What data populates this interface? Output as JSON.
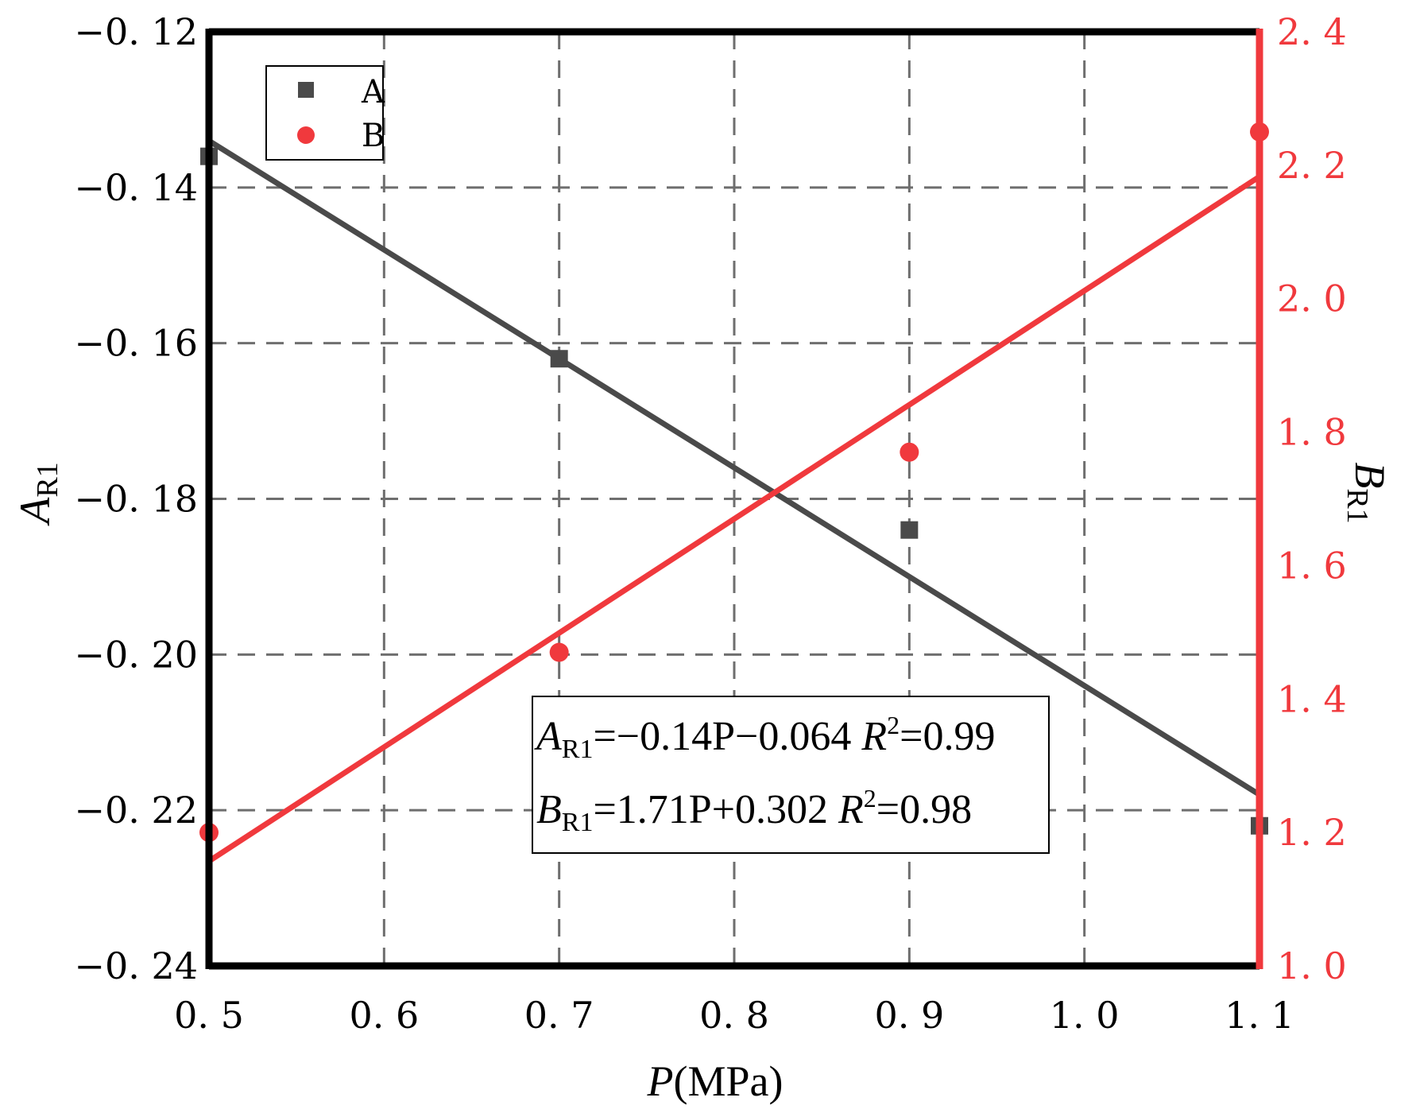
{
  "chart_data": {
    "type": "scatter",
    "title": "",
    "xlabel": {
      "main": "P",
      "unit": "(MPa)"
    },
    "ylabel_left": {
      "main": "A",
      "sub": "R1"
    },
    "ylabel_right": {
      "main": "B",
      "sub": "R1"
    },
    "xlim": [
      0.5,
      1.1
    ],
    "ylim_left": [
      -0.24,
      -0.12
    ],
    "ylim_right": [
      1.0,
      2.4
    ],
    "x_ticks": [
      0.5,
      0.6,
      0.7,
      0.8,
      0.9,
      1.0,
      1.1
    ],
    "x_tick_labels": [
      "0. 5",
      "0. 6",
      "0. 7",
      "0. 8",
      "0. 9",
      "1. 0",
      "1. 1"
    ],
    "y_left_ticks": [
      -0.24,
      -0.22,
      -0.2,
      -0.18,
      -0.16,
      -0.14,
      -0.12
    ],
    "y_left_tick_labels": [
      "−0. 24",
      "−0. 22",
      "−0. 20",
      "−0. 18",
      "−0. 16",
      "−0. 14",
      "−0. 12"
    ],
    "y_right_ticks": [
      1.0,
      1.2,
      1.4,
      1.6,
      1.8,
      2.0,
      2.2,
      2.4
    ],
    "y_right_tick_labels": [
      "1. 0",
      "1. 2",
      "1. 4",
      "1. 6",
      "1. 8",
      "2. 0",
      "2. 2",
      "2. 4"
    ],
    "grid": true,
    "legend_position": "top-left",
    "series": [
      {
        "name": "A",
        "axis": "left",
        "marker": "square",
        "color": "#4a4a4a",
        "x": [
          0.5,
          0.7,
          0.9,
          1.1
        ],
        "y": [
          -0.136,
          -0.162,
          -0.184,
          -0.222
        ],
        "fit": {
          "slope": -0.14,
          "intercept": -0.064
        }
      },
      {
        "name": "B",
        "axis": "right",
        "marker": "circle",
        "color": "#f0393d",
        "x": [
          0.5,
          0.7,
          0.9,
          1.1
        ],
        "y": [
          1.2,
          1.47,
          1.77,
          2.25
        ],
        "fit": {
          "slope": 1.71,
          "intercept": 0.302
        }
      }
    ],
    "annotation": {
      "lines": [
        {
          "v1": "A",
          "s1": "R1",
          "t1": "=−0.14P−0.064  ",
          "v2": "R",
          "sup": "2",
          "t2": "=0.99"
        },
        {
          "v1": "B",
          "s1": "R1",
          "t1": "=1.71P+0.302  ",
          "v2": "R",
          "sup": "2",
          "t2": "=0.98"
        }
      ]
    },
    "colors": {
      "left_axis": "#000000",
      "right_axis": "#f0393d",
      "grid": "#6e6e6e"
    }
  }
}
